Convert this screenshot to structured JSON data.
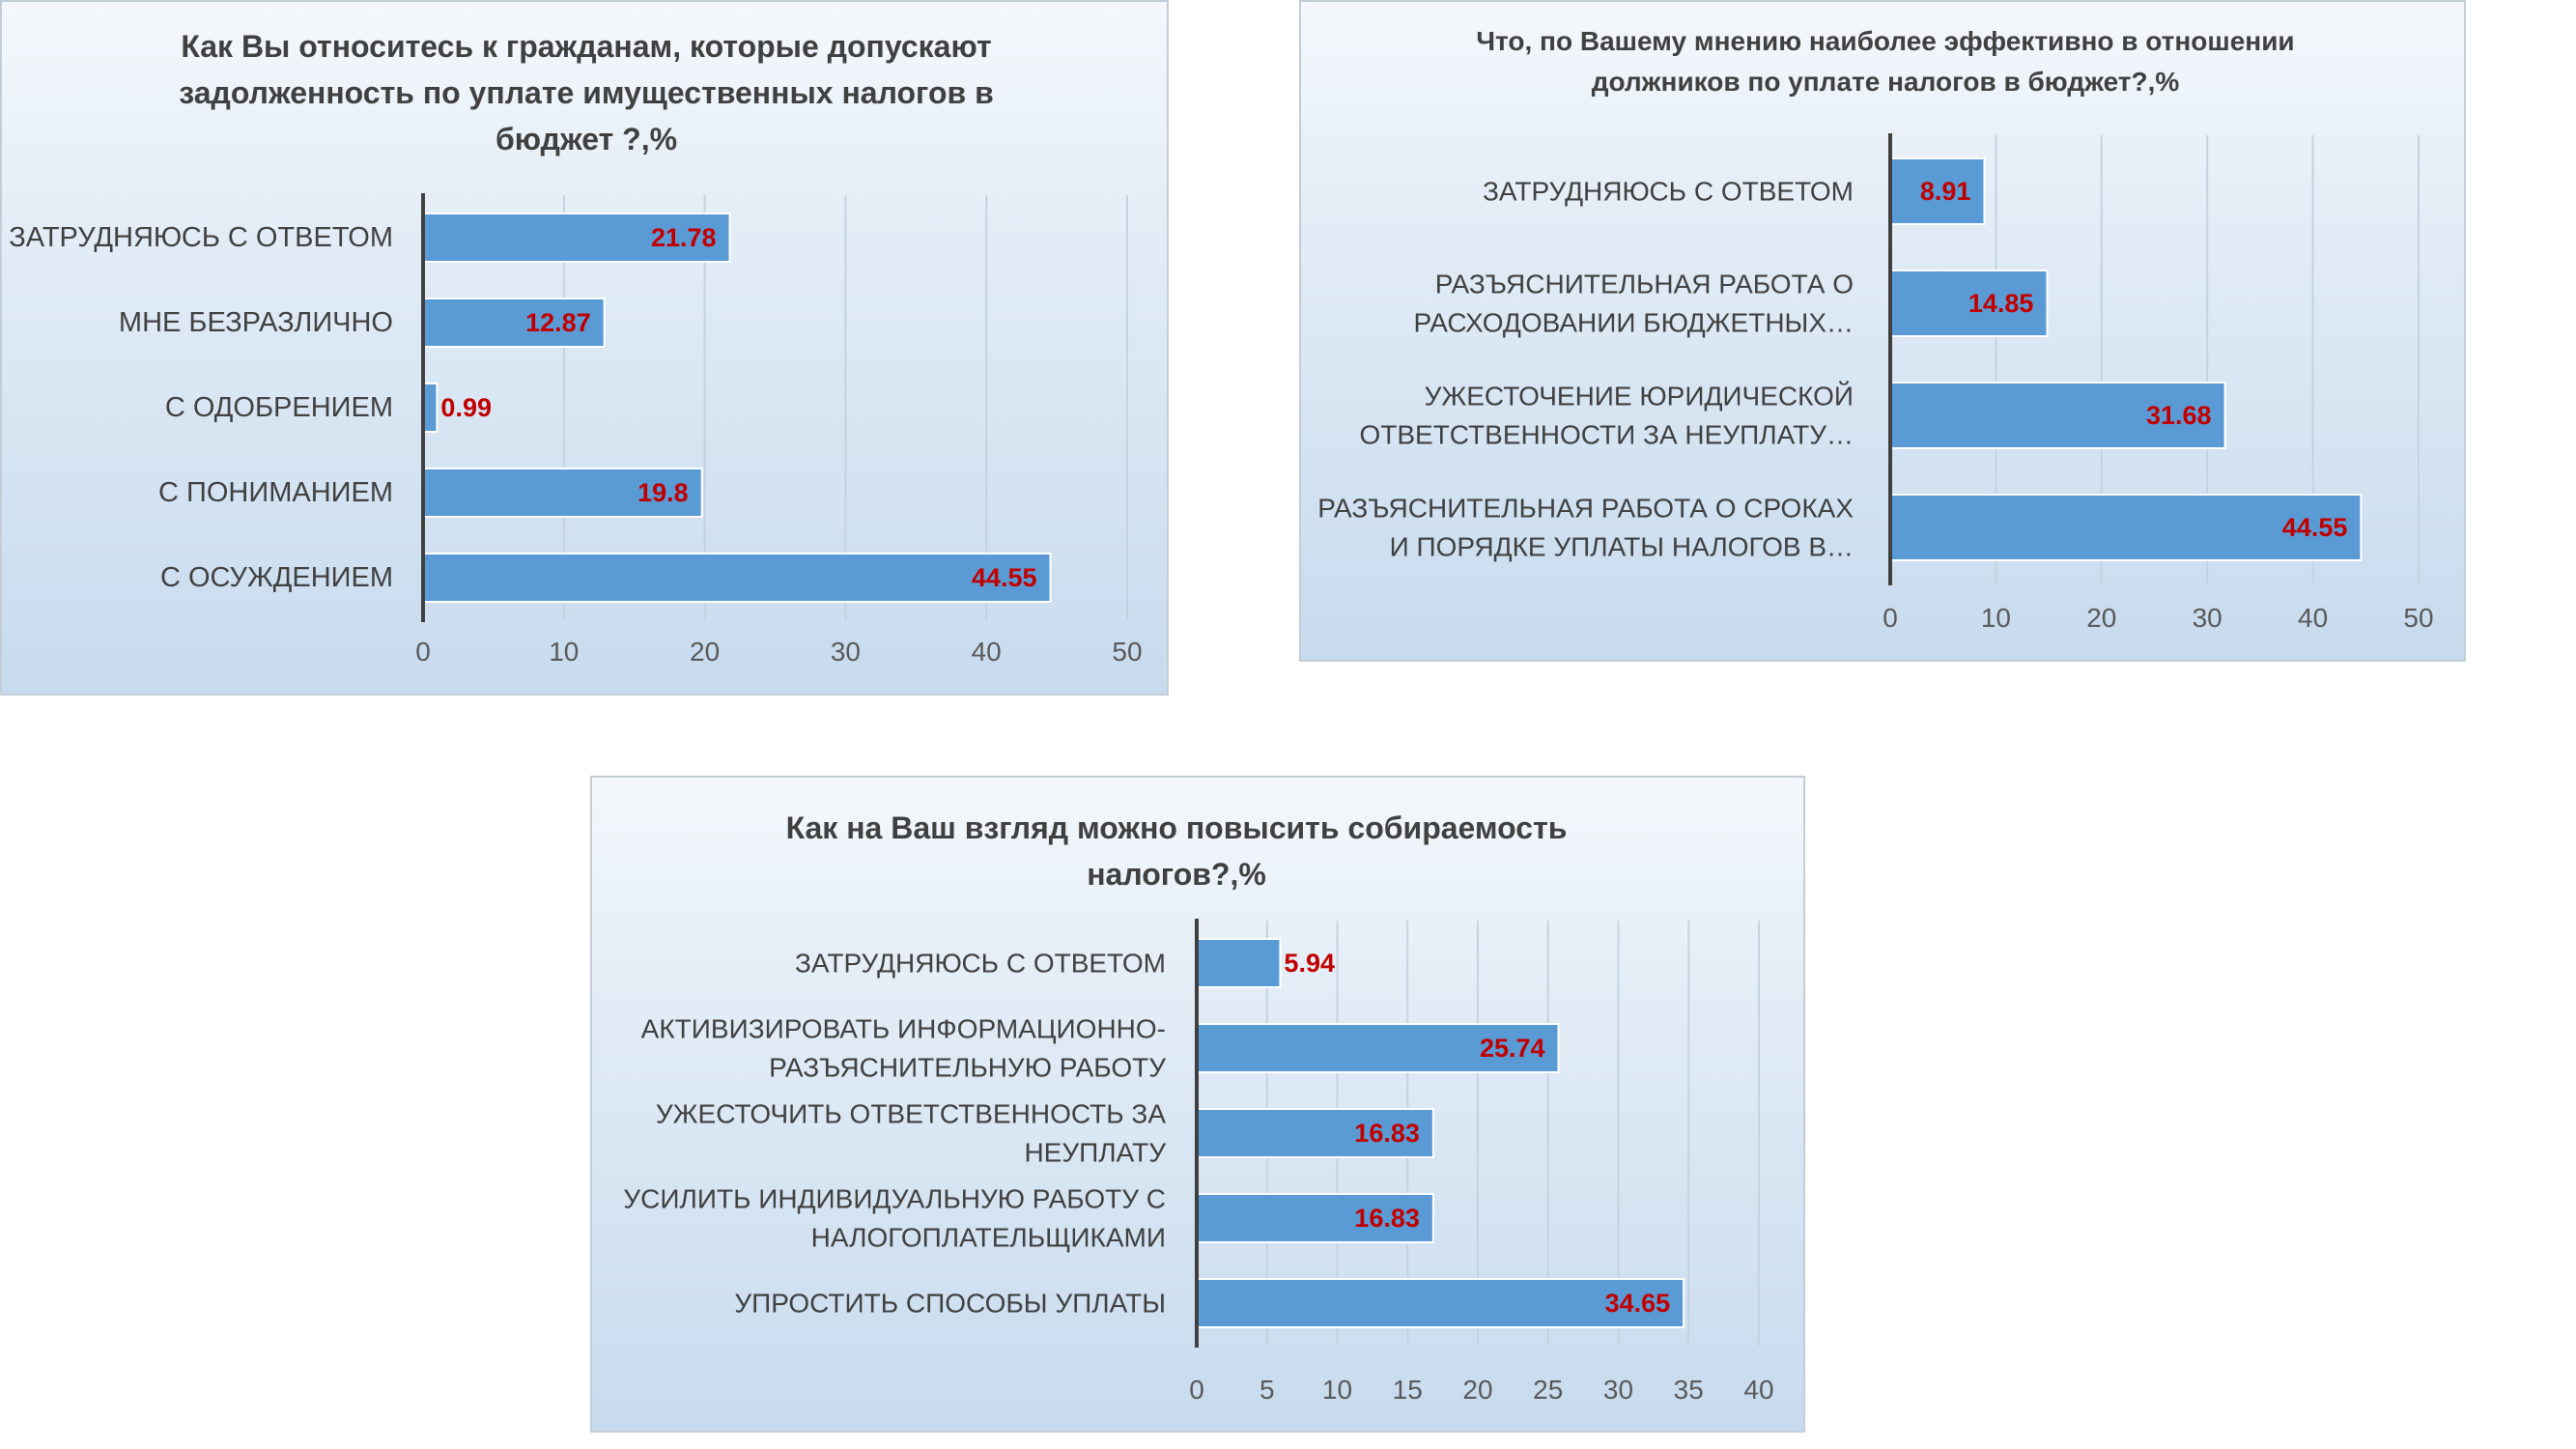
{
  "chart_data": [
    {
      "type": "bar",
      "orientation": "horizontal",
      "title": "Как Вы относитесь к гражданам, которые допускают задолженность по уплате имущественных налогов в бюджет ?,%",
      "categories": [
        "ЗАТРУДНЯЮСЬ С ОТВЕТОМ",
        "МНЕ БЕЗРАЗЛИЧНО",
        "С ОДОБРЕНИЕМ",
        "С ПОНИМАНИЕМ",
        "С ОСУЖДЕНИЕМ"
      ],
      "category_lines": [
        [
          "ЗАТРУДНЯЮСЬ С ОТВЕТОМ"
        ],
        [
          "МНЕ БЕЗРАЗЛИЧНО"
        ],
        [
          "С ОДОБРЕНИЕМ"
        ],
        [
          "С ПОНИМАНИЕМ"
        ],
        [
          "С ОСУЖДЕНИЕМ"
        ]
      ],
      "values": [
        21.78,
        12.87,
        0.99,
        19.8,
        44.55
      ],
      "value_labels": [
        "21.78",
        "12.87",
        "0.99",
        "19.8",
        "44.55"
      ],
      "xlim": [
        0,
        50
      ],
      "xticks": [
        0,
        10,
        20,
        30,
        40,
        50
      ],
      "grid": true,
      "legend": false,
      "bar_color": "#5b9bd5",
      "label_color": "#c00000"
    },
    {
      "type": "bar",
      "orientation": "horizontal",
      "title": "Что, по Вашему мнению наиболее эффективно в отношении должников по уплате налогов в бюджет?,%",
      "categories": [
        "ЗАТРУДНЯЮСЬ С ОТВЕТОМ",
        "РАЗЪЯСНИТЕЛЬНАЯ РАБОТА О РАСХОДОВАНИИ БЮДЖЕТНЫХ…",
        "УЖЕСТОЧЕНИЕ ЮРИДИЧЕСКОЙ ОТВЕТСТВЕННОСТИ ЗА НЕУПЛАТУ…",
        "РАЗЪЯСНИТЕЛЬНАЯ РАБОТА О СРОКАХ И ПОРЯДКЕ УПЛАТЫ НАЛОГОВ В…"
      ],
      "category_lines": [
        [
          "ЗАТРУДНЯЮСЬ С ОТВЕТОМ"
        ],
        [
          "РАЗЪЯСНИТЕЛЬНАЯ РАБОТА О",
          "РАСХОДОВАНИИ БЮДЖЕТНЫХ…"
        ],
        [
          "УЖЕСТОЧЕНИЕ ЮРИДИЧЕСКОЙ",
          "ОТВЕТСТВЕННОСТИ ЗА НЕУПЛАТУ…"
        ],
        [
          "РАЗЪЯСНИТЕЛЬНАЯ РАБОТА О СРОКАХ",
          "И ПОРЯДКЕ УПЛАТЫ НАЛОГОВ В…"
        ]
      ],
      "values": [
        8.91,
        14.85,
        31.68,
        44.55
      ],
      "value_labels": [
        "8.91",
        "14.85",
        "31.68",
        "44.55"
      ],
      "xlim": [
        0,
        50
      ],
      "xticks": [
        0,
        10,
        20,
        30,
        40,
        50
      ],
      "grid": true,
      "legend": false,
      "bar_color": "#5b9bd5",
      "label_color": "#c00000"
    },
    {
      "type": "bar",
      "orientation": "horizontal",
      "title": "Как на Ваш взгляд можно повысить собираемость налогов?,%",
      "categories": [
        "ЗАТРУДНЯЮСЬ С ОТВЕТОМ",
        "АКТИВИЗИРОВАТЬ ИНФОРМАЦИОННО-РАЗЪЯСНИТЕЛЬНУЮ РАБОТУ",
        "УЖЕСТОЧИТЬ ОТВЕТСТВЕННОСТЬ ЗА НЕУПЛАТУ",
        "УСИЛИТЬ ИНДИВИДУАЛЬНУЮ РАБОТУ С НАЛОГОПЛАТЕЛЬЩИКАМИ",
        "УПРОСТИТЬ СПОСОБЫ УПЛАТЫ"
      ],
      "category_lines": [
        [
          "ЗАТРУДНЯЮСЬ С ОТВЕТОМ"
        ],
        [
          "АКТИВИЗИРОВАТЬ ИНФОРМАЦИОННО-",
          "РАЗЪЯСНИТЕЛЬНУЮ РАБОТУ"
        ],
        [
          "УЖЕСТОЧИТЬ ОТВЕТСТВЕННОСТЬ ЗА",
          "НЕУПЛАТУ"
        ],
        [
          "УСИЛИТЬ ИНДИВИДУАЛЬНУЮ РАБОТУ С",
          "НАЛОГОПЛАТЕЛЬЩИКАМИ"
        ],
        [
          "УПРОСТИТЬ СПОСОБЫ УПЛАТЫ"
        ]
      ],
      "values": [
        5.94,
        25.74,
        16.83,
        16.83,
        34.65
      ],
      "value_labels": [
        "5.94",
        "25.74",
        "16.83",
        "16.83",
        "34.65"
      ],
      "xlim": [
        0,
        40
      ],
      "xticks": [
        0,
        5,
        10,
        15,
        20,
        25,
        30,
        35,
        40
      ],
      "grid": true,
      "legend": false,
      "bar_color": "#5b9bd5",
      "label_color": "#c00000"
    }
  ]
}
